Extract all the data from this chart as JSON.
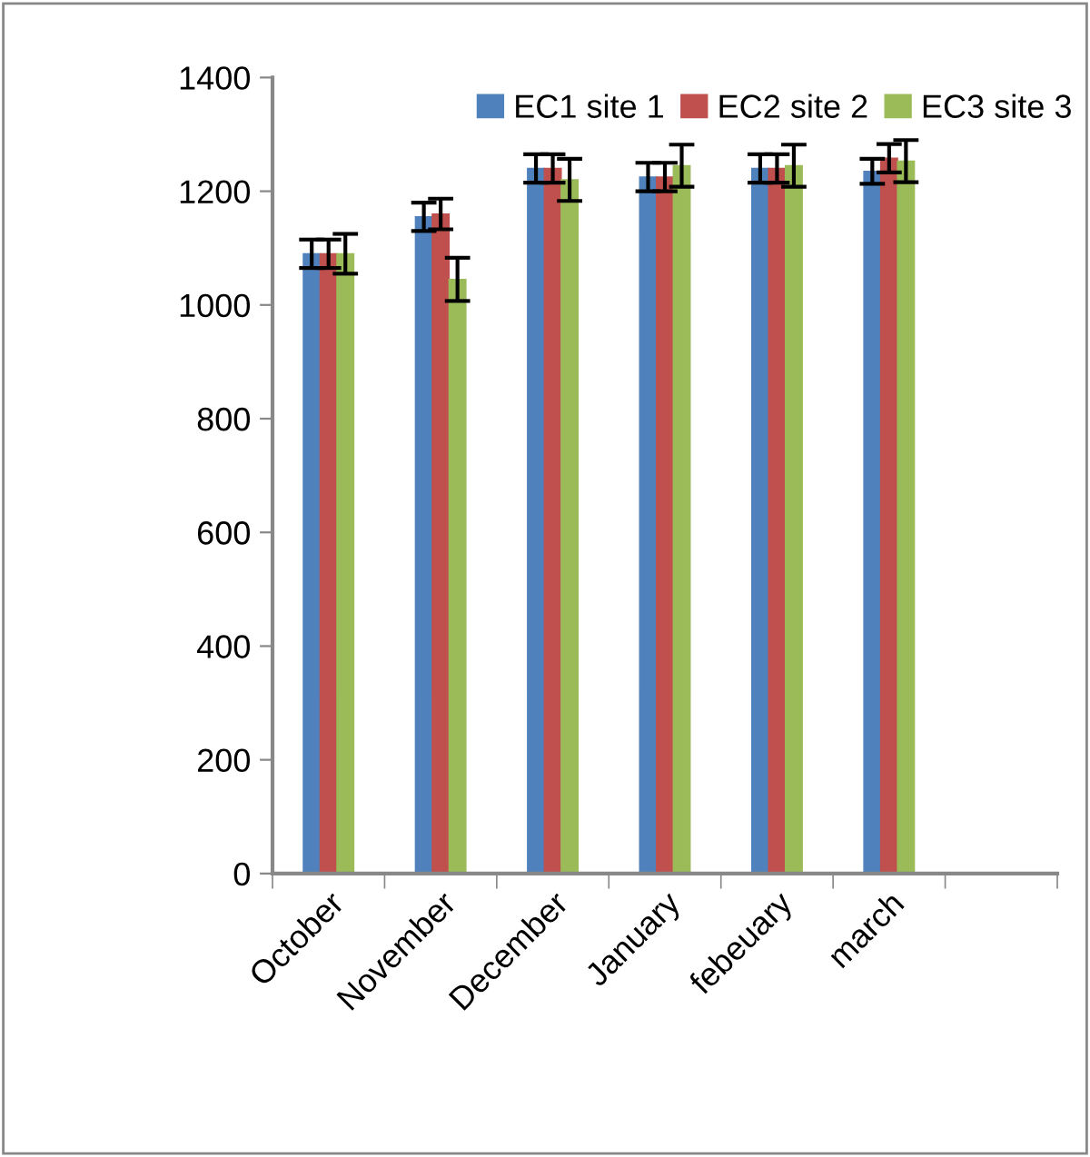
{
  "chart_data": {
    "type": "bar",
    "categories": [
      "October",
      "November",
      "December",
      "January",
      "febeuary",
      "march",
      null
    ],
    "series": [
      {
        "name": "EC1 site 1",
        "color": "#4f81bd",
        "values": [
          1090,
          1155,
          1240,
          1225,
          1240,
          1235,
          null
        ],
        "errors": [
          25,
          25,
          25,
          25,
          25,
          22,
          null
        ]
      },
      {
        "name": "EC2 site 2",
        "color": "#c0504d",
        "values": [
          1090,
          1160,
          1240,
          1225,
          1240,
          1258,
          null
        ],
        "errors": [
          25,
          27,
          25,
          25,
          25,
          25,
          null
        ]
      },
      {
        "name": "EC3 site 3",
        "color": "#9bbb59",
        "values": [
          1090,
          1045,
          1220,
          1245,
          1245,
          1253,
          null
        ],
        "errors": [
          35,
          38,
          37,
          37,
          37,
          37,
          null
        ]
      }
    ],
    "ylim": [
      0,
      1400
    ],
    "yticks": [
      0,
      200,
      400,
      600,
      800,
      1000,
      1200,
      1400
    ],
    "grid": false,
    "legend": "top right"
  }
}
